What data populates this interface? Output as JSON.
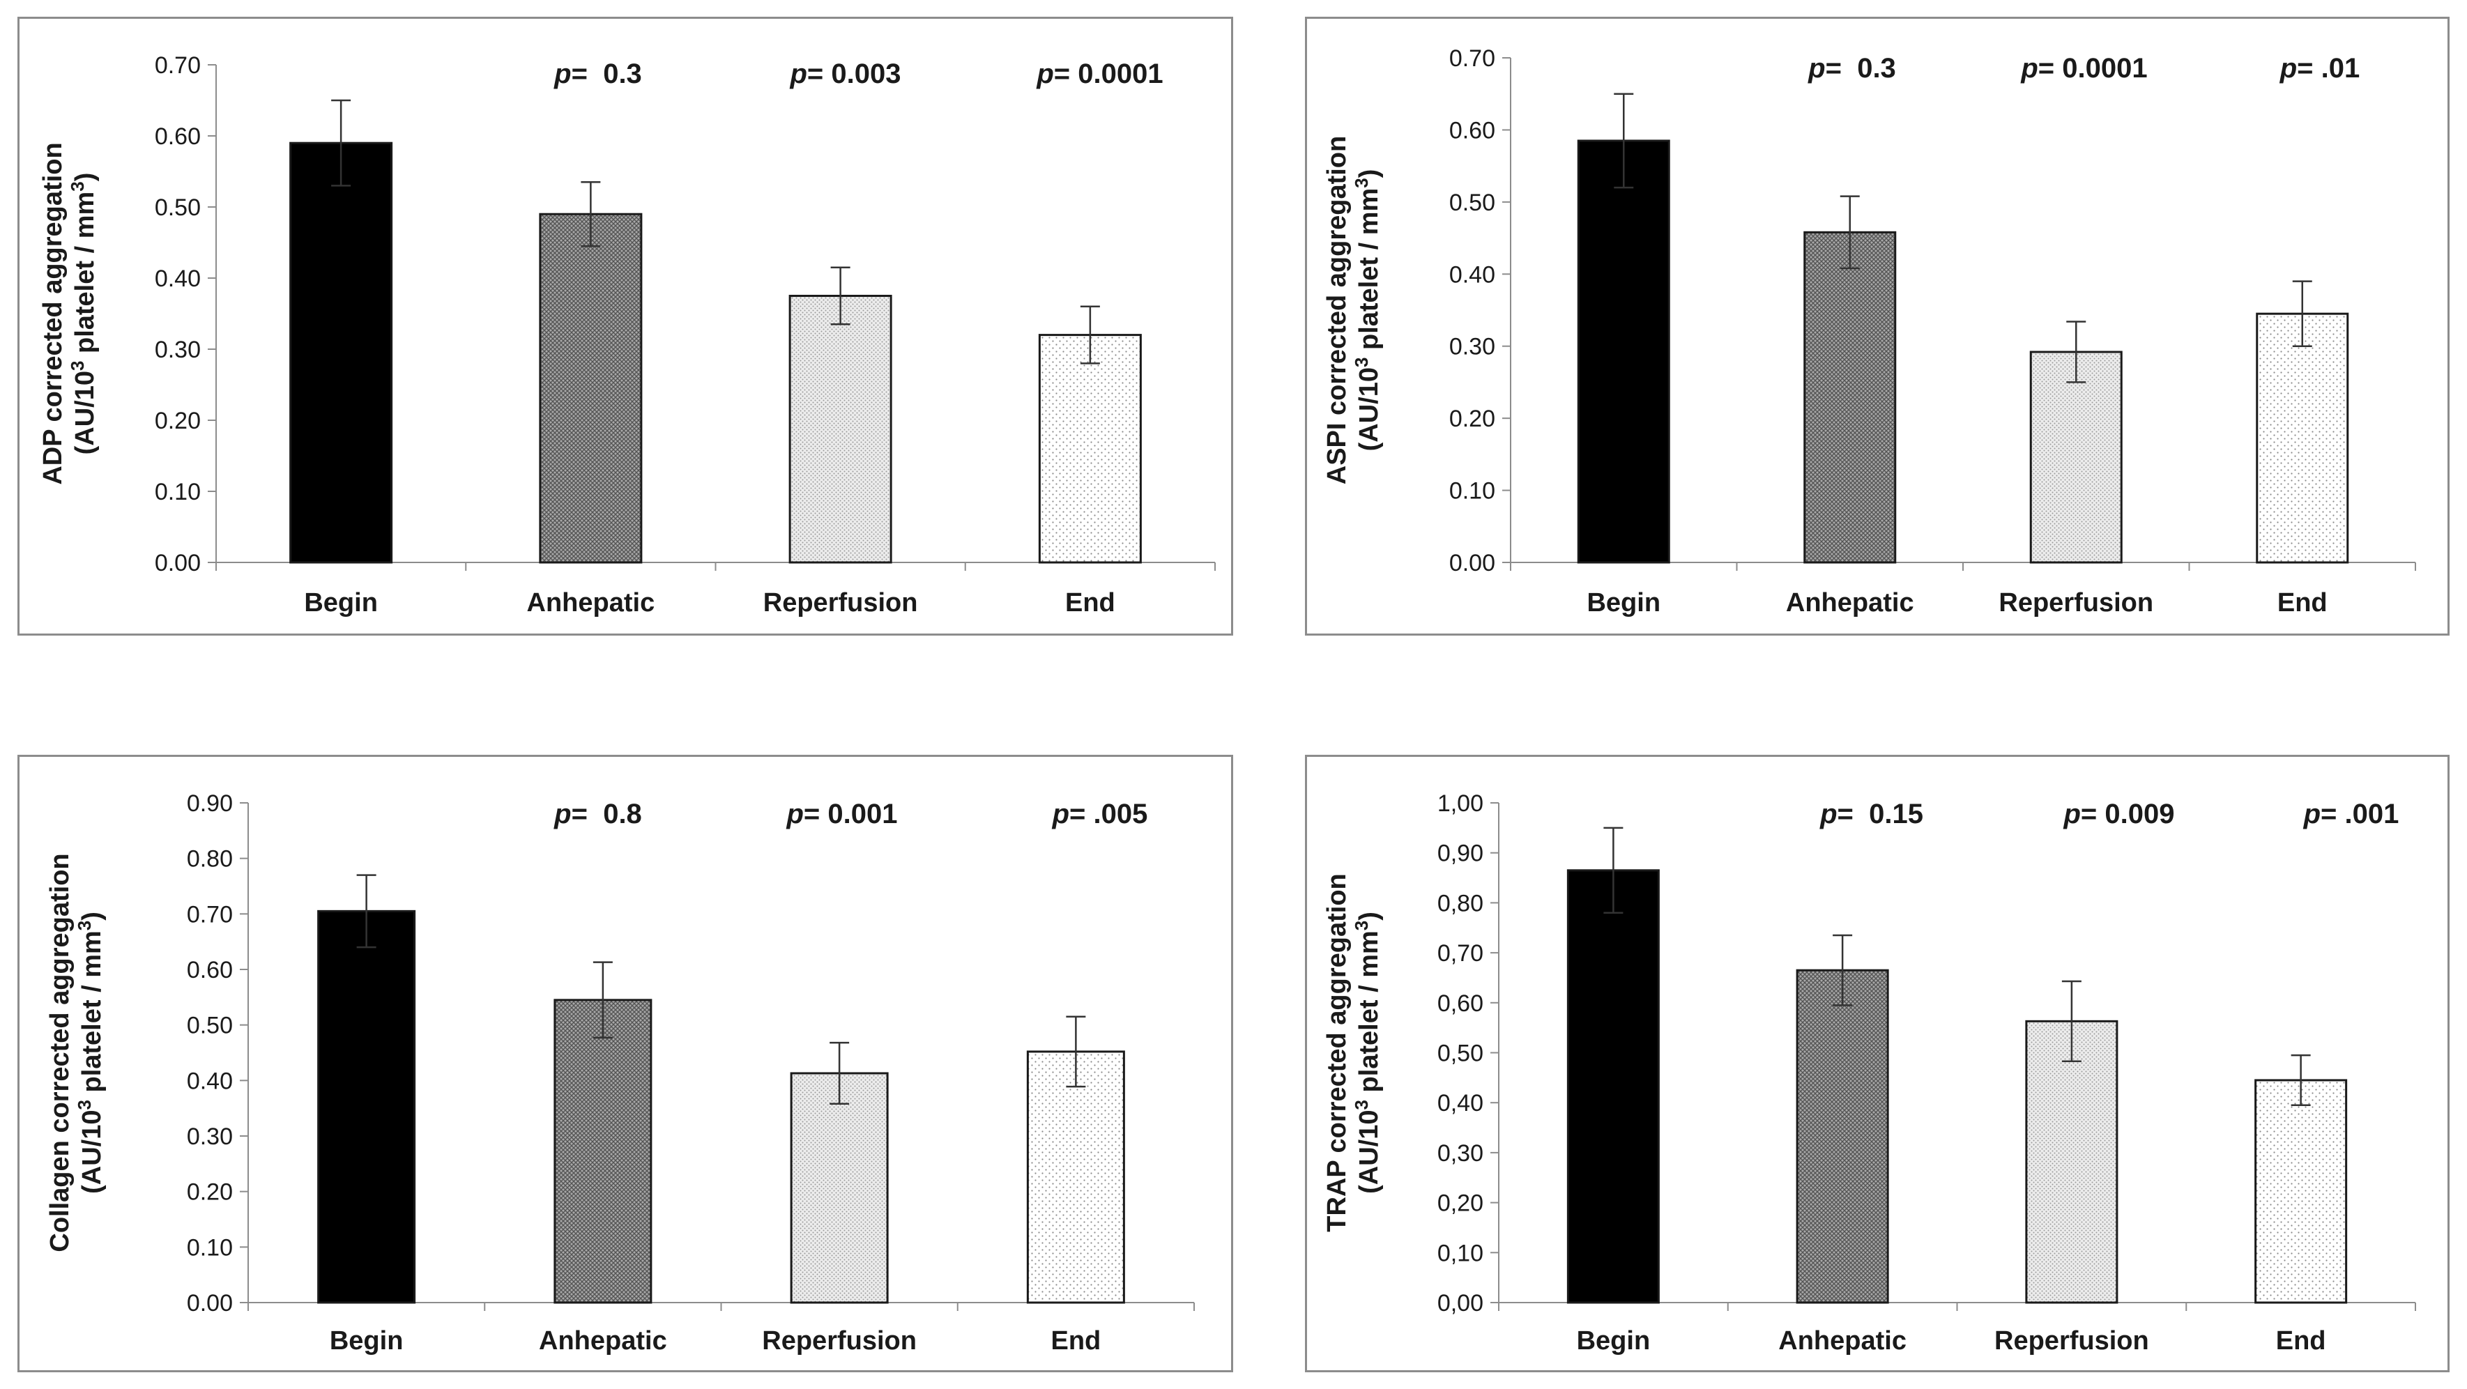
{
  "chart_data": [
    {
      "type": "bar",
      "categories": [
        "Begin",
        "Anhepatic",
        "Reperfusion",
        "End"
      ],
      "values": [
        0.59,
        0.49,
        0.375,
        0.32
      ],
      "errors": [
        0.06,
        0.045,
        0.04,
        0.04
      ],
      "ylabel_line1": "ADP corrected aggregation",
      "ylabel_line2": "(AU/10",
      "ylabel_sup": "3",
      "ylabel_line2_mid": " platelet / mm",
      "ylabel_sup2": "3",
      "ylabel_line2_end": ")",
      "ylim": [
        0,
        0.7
      ],
      "ytick_step": 0.1,
      "tick_labels": [
        "0.00",
        "0.10",
        "0.20",
        "0.30",
        "0.40",
        "0.50",
        "0.60",
        "0.70"
      ],
      "pvalues": [
        {
          "prefix": "p",
          "text": "=  0.3"
        },
        {
          "prefix": "p",
          "text": "= 0.003"
        },
        {
          "prefix": "p",
          "text": "= 0.0001"
        }
      ]
    },
    {
      "type": "bar",
      "categories": [
        "Begin",
        "Anhepatic",
        "Reperfusion",
        "End"
      ],
      "values": [
        0.585,
        0.458,
        0.292,
        0.345
      ],
      "errors": [
        0.065,
        0.05,
        0.042,
        0.045
      ],
      "ylabel_line1": "ASPI corrected aggregation",
      "ylabel_line2": "(AU/10",
      "ylabel_sup": "3",
      "ylabel_line2_mid": " platelet / mm",
      "ylabel_sup2": "3",
      "ylabel_line2_end": ")",
      "ylim": [
        0,
        0.7
      ],
      "ytick_step": 0.1,
      "tick_labels": [
        "0.00",
        "0.10",
        "0.20",
        "0.30",
        "0.40",
        "0.50",
        "0.60",
        "0.70"
      ],
      "pvalues": [
        {
          "prefix": "p",
          "text": "=  0.3"
        },
        {
          "prefix": "p",
          "text": "= 0.0001"
        },
        {
          "prefix": "p",
          "text": "= .01"
        }
      ]
    },
    {
      "type": "bar",
      "categories": [
        "Begin",
        "Anhepatic",
        "Reperfusion",
        "End"
      ],
      "values": [
        0.705,
        0.545,
        0.413,
        0.452
      ],
      "errors": [
        0.065,
        0.068,
        0.055,
        0.063
      ],
      "ylabel_line1": "Collagen corrected aggregation",
      "ylabel_line2": "(AU/10",
      "ylabel_sup": "3",
      "ylabel_line2_mid": " platelet / mm",
      "ylabel_sup2": "3",
      "ylabel_line2_end": ")",
      "ylim": [
        0,
        0.9
      ],
      "ytick_step": 0.1,
      "tick_labels": [
        "0.00",
        "0.10",
        "0.20",
        "0.30",
        "0.40",
        "0.50",
        "0.60",
        "0.70",
        "0.80",
        "0.90"
      ],
      "pvalues": [
        {
          "prefix": "p",
          "text": "=  0.8"
        },
        {
          "prefix": "p",
          "text": "= 0.001"
        },
        {
          "prefix": "p",
          "text": "= .005"
        }
      ]
    },
    {
      "type": "bar",
      "categories": [
        "Begin",
        "Anhepatic",
        "Reperfusion",
        "End"
      ],
      "values": [
        0.865,
        0.665,
        0.563,
        0.445
      ],
      "errors": [
        0.085,
        0.07,
        0.08,
        0.05
      ],
      "ylabel_line1": "TRAP corrected aggregation",
      "ylabel_line2": "(AU/10",
      "ylabel_sup": "3",
      "ylabel_line2_mid": " platelet / mm",
      "ylabel_sup2": "3",
      "ylabel_line2_end": ")",
      "ylim": [
        0,
        1.0
      ],
      "ytick_step": 0.1,
      "tick_labels": [
        "0,00",
        "0,10",
        "0,20",
        "0,30",
        "0,40",
        "0,50",
        "0,60",
        "0,70",
        "0,80",
        "0,90",
        "1,00"
      ],
      "pvalues": [
        {
          "prefix": "p",
          "text": "=  0.15"
        },
        {
          "prefix": "p",
          "text": "= 0.009"
        },
        {
          "prefix": "p",
          "text": "= .001"
        }
      ]
    }
  ],
  "colors": {
    "begin": "#000000",
    "anhepatic": "#888888",
    "reperfusion": "#d9d9d9",
    "end": "#f4f4f4",
    "axis": "#8c8c8c",
    "border": "#8c8c8c"
  }
}
